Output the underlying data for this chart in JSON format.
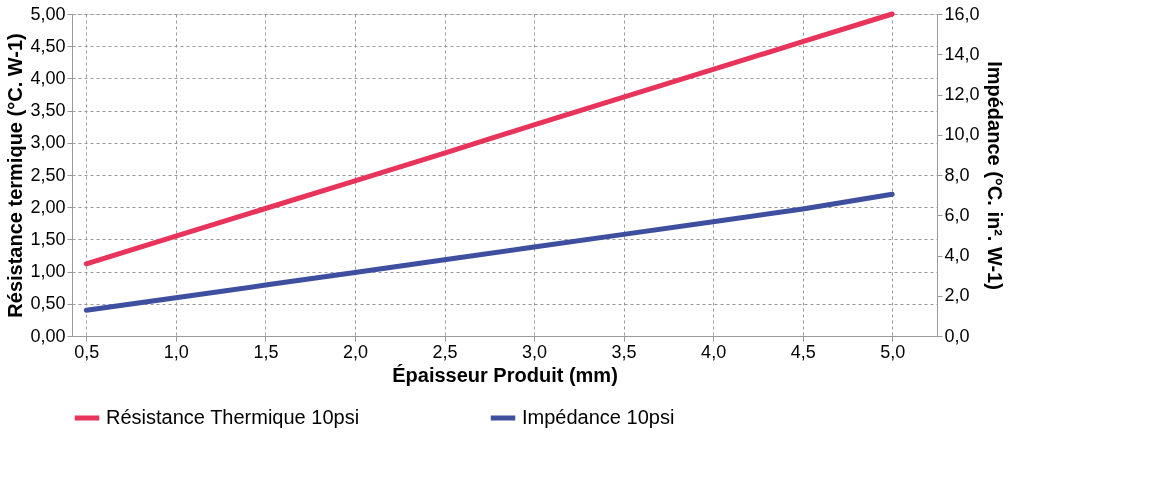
{
  "chart_data": {
    "type": "line",
    "xlabel": "Épaisseur Produit (mm)",
    "ylabel": "Résistance termique (°C. W-1)",
    "y2label": "Impédance (°C. in². W-1)",
    "x": [
      0.5,
      1.0,
      1.5,
      2.0,
      2.5,
      3.0,
      3.5,
      4.0,
      4.5,
      5.0
    ],
    "series": [
      {
        "name": "Résistance Thermique 10psi",
        "color": "#e8335a",
        "values": [
          1.12,
          1.55,
          1.98,
          2.41,
          2.84,
          3.28,
          3.71,
          4.14,
          4.57,
          5.0
        ]
      },
      {
        "name": "Impédance 10psi",
        "color": "#3f4fa0",
        "axis": "y2",
        "values": [
          1.28,
          1.9,
          2.53,
          3.16,
          3.79,
          4.42,
          5.05,
          5.68,
          6.31,
          7.04
        ]
      }
    ],
    "xlim": [
      0.42,
      5.25
    ],
    "xticks": [
      {
        "value": 0.5,
        "label": "0,5"
      },
      {
        "value": 1.0,
        "label": "1,0"
      },
      {
        "value": 1.5,
        "label": "1,5"
      },
      {
        "value": 2.0,
        "label": "2,0"
      },
      {
        "value": 2.5,
        "label": "2,5"
      },
      {
        "value": 3.0,
        "label": "3,0"
      },
      {
        "value": 3.5,
        "label": "3,5"
      },
      {
        "value": 4.0,
        "label": "4,0"
      },
      {
        "value": 4.5,
        "label": "4,5"
      },
      {
        "value": 5.0,
        "label": "5,0"
      }
    ],
    "ylim": [
      0,
      5
    ],
    "yticks": [
      {
        "value": 0,
        "label": "0,00"
      },
      {
        "value": 0.5,
        "label": "0,50"
      },
      {
        "value": 1.0,
        "label": "1,00"
      },
      {
        "value": 1.5,
        "label": "1,50"
      },
      {
        "value": 2.0,
        "label": "2,00"
      },
      {
        "value": 2.5,
        "label": "2,50"
      },
      {
        "value": 3.0,
        "label": "3,00"
      },
      {
        "value": 3.5,
        "label": "3,50"
      },
      {
        "value": 4.0,
        "label": "4,00"
      },
      {
        "value": 4.5,
        "label": "4,50"
      },
      {
        "value": 5.0,
        "label": "5,00"
      }
    ],
    "y2lim": [
      0,
      16
    ],
    "y2ticks": [
      {
        "value": 0,
        "label": "0,0"
      },
      {
        "value": 2,
        "label": "2,0"
      },
      {
        "value": 4,
        "label": "4,0"
      },
      {
        "value": 6,
        "label": "6,0"
      },
      {
        "value": 8,
        "label": "8,0"
      },
      {
        "value": 10,
        "label": "10,0"
      },
      {
        "value": 12,
        "label": "12,0"
      },
      {
        "value": 14,
        "label": "14,0"
      },
      {
        "value": 16,
        "label": "16,0"
      }
    ],
    "grid": true,
    "legend": "bottom",
    "marker": "none",
    "line_style": "solid"
  }
}
